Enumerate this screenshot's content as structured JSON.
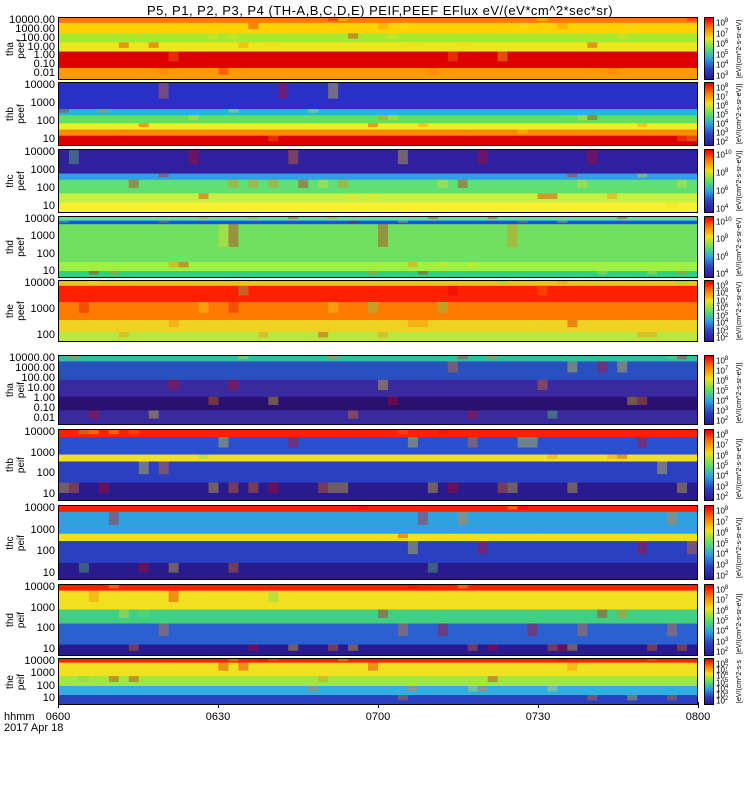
{
  "chart_data": {
    "type": "heatmap",
    "title": "P5, P1, P2, P3, P4 (TH-A,B,C,D,E) PEIF,PEEF EFlux eV/(eV*cm^2*sec*sr)",
    "x_ticks": [
      "0600",
      "0630",
      "0700",
      "0730",
      "0800"
    ],
    "xlabel_line1": "hhmm",
    "xlabel_line2": "2017 Apr 18",
    "colorbar_unit": "[eV/(cm^2-s-sr-eV)]",
    "panels": [
      {
        "label": "tha\npeef",
        "probe": "tha",
        "product": "peef",
        "y_ticks": [
          "10000.00",
          "1000.00",
          "100.00",
          "10.00",
          "1.00",
          "0.10",
          "0.01"
        ],
        "cbar_ticks": [
          "10^8",
          "10^7",
          "10^6",
          "10^5",
          "10^4",
          "10^3"
        ],
        "bands": [
          {
            "from": 0.0,
            "to": 0.08,
            "c": "#ff7a00"
          },
          {
            "from": 0.08,
            "to": 0.25,
            "c": "#ffd200"
          },
          {
            "from": 0.25,
            "to": 0.4,
            "c": "#a8e830"
          },
          {
            "from": 0.4,
            "to": 0.55,
            "c": "#e8e81a"
          },
          {
            "from": 0.55,
            "to": 0.82,
            "c": "#dd0000"
          },
          {
            "from": 0.82,
            "to": 1.0,
            "c": "#ff9a00"
          }
        ]
      },
      {
        "label": "thb\npeef",
        "probe": "thb",
        "product": "peef",
        "y_ticks": [
          "10000",
          "1000",
          "100",
          "10"
        ],
        "cbar_ticks": [
          "10^8",
          "10^7",
          "10^6",
          "10^5",
          "10^4",
          "10^3",
          "10^2"
        ],
        "bands": [
          {
            "from": 0.0,
            "to": 0.42,
            "c": "#2830c8"
          },
          {
            "from": 0.42,
            "to": 0.52,
            "c": "#20b8e0"
          },
          {
            "from": 0.52,
            "to": 0.65,
            "c": "#60e060"
          },
          {
            "from": 0.65,
            "to": 0.75,
            "c": "#f0f020"
          },
          {
            "from": 0.75,
            "to": 0.85,
            "c": "#ff8a00"
          },
          {
            "from": 0.85,
            "to": 1.0,
            "c": "#dd0000"
          }
        ]
      },
      {
        "label": "thc\npeef",
        "probe": "thc",
        "product": "peef",
        "y_ticks": [
          "10000",
          "1000",
          "100",
          "10"
        ],
        "cbar_ticks": [
          "10^10",
          "10^8",
          "10^6",
          "10^4"
        ],
        "bands": [
          {
            "from": 0.0,
            "to": 0.38,
            "c": "#3020a0"
          },
          {
            "from": 0.38,
            "to": 0.48,
            "c": "#30a0e0"
          },
          {
            "from": 0.48,
            "to": 0.7,
            "c": "#60e070"
          },
          {
            "from": 0.7,
            "to": 0.85,
            "c": "#c8f040"
          },
          {
            "from": 0.85,
            "to": 1.0,
            "c": "#f8f030"
          }
        ]
      },
      {
        "label": "thd\npeef",
        "probe": "thd",
        "product": "peef",
        "y_ticks": [
          "10000",
          "1000",
          "100",
          "10"
        ],
        "cbar_ticks": [
          "10^10",
          "10^8",
          "10^6",
          "10^4"
        ],
        "bands": [
          {
            "from": 0.0,
            "to": 0.06,
            "c": "#60e0a0"
          },
          {
            "from": 0.06,
            "to": 0.12,
            "c": "#2050e0"
          },
          {
            "from": 0.12,
            "to": 0.75,
            "c": "#70e060"
          },
          {
            "from": 0.75,
            "to": 0.9,
            "c": "#a0f040"
          },
          {
            "from": 0.9,
            "to": 1.0,
            "c": "#30d080"
          }
        ]
      },
      {
        "label": "the\npeef",
        "probe": "the",
        "product": "peef",
        "y_ticks": [
          "10000",
          "1000",
          "100"
        ],
        "cbar_ticks": [
          "10^9",
          "10^8",
          "10^7",
          "10^6",
          "10^5",
          "10^4",
          "10^3",
          "10^2"
        ],
        "bands": [
          {
            "from": 0.0,
            "to": 0.08,
            "c": "#f0c020"
          },
          {
            "from": 0.08,
            "to": 0.35,
            "c": "#ff2000"
          },
          {
            "from": 0.35,
            "to": 0.65,
            "c": "#ff7a00"
          },
          {
            "from": 0.65,
            "to": 0.85,
            "c": "#f0d020"
          },
          {
            "from": 0.85,
            "to": 1.0,
            "c": "#b8e840"
          }
        ]
      },
      {
        "label": "tha\npeif",
        "probe": "tha",
        "product": "peif",
        "y_ticks": [
          "10000.00",
          "1000.00",
          "100.00",
          "10.00",
          "1.00",
          "0.10",
          "0.01"
        ],
        "cbar_ticks": [
          "10^8",
          "10^7",
          "10^6",
          "10^5",
          "10^4",
          "10^3",
          "10^2"
        ],
        "bands": [
          {
            "from": 0.0,
            "to": 0.08,
            "c": "#30c0a0"
          },
          {
            "from": 0.08,
            "to": 0.35,
            "c": "#2850c0"
          },
          {
            "from": 0.35,
            "to": 0.6,
            "c": "#3a2aa0"
          },
          {
            "from": 0.6,
            "to": 0.8,
            "c": "#2a1070"
          },
          {
            "from": 0.8,
            "to": 1.0,
            "c": "#3a2aa0"
          }
        ]
      },
      {
        "label": "thb\npeif",
        "probe": "thb",
        "product": "peif",
        "y_ticks": [
          "10000",
          "1000",
          "100",
          "10"
        ],
        "cbar_ticks": [
          "10^8",
          "10^7",
          "10^6",
          "10^5",
          "10^4",
          "10^3",
          "10^2"
        ],
        "bands": [
          {
            "from": 0.0,
            "to": 0.1,
            "c": "#ff2000"
          },
          {
            "from": 0.1,
            "to": 0.35,
            "c": "#2a50d0"
          },
          {
            "from": 0.35,
            "to": 0.45,
            "c": "#f0e020"
          },
          {
            "from": 0.45,
            "to": 0.75,
            "c": "#2a40c0"
          },
          {
            "from": 0.75,
            "to": 1.0,
            "c": "#2a1a90"
          }
        ]
      },
      {
        "label": "thc\npeif",
        "probe": "thc",
        "product": "peif",
        "y_ticks": [
          "10000",
          "1000",
          "100",
          "10"
        ],
        "cbar_ticks": [
          "10^8",
          "10^7",
          "10^6",
          "10^5",
          "10^4",
          "10^3",
          "10^2"
        ],
        "bands": [
          {
            "from": 0.0,
            "to": 0.08,
            "c": "#ff2000"
          },
          {
            "from": 0.08,
            "to": 0.38,
            "c": "#30a0e0"
          },
          {
            "from": 0.38,
            "to": 0.48,
            "c": "#f0e020"
          },
          {
            "from": 0.48,
            "to": 0.78,
            "c": "#2a40c0"
          },
          {
            "from": 0.78,
            "to": 1.0,
            "c": "#2a1a90"
          }
        ]
      },
      {
        "label": "thd\npeif",
        "probe": "thd",
        "product": "peif",
        "y_ticks": [
          "10000",
          "1000",
          "100",
          "10"
        ],
        "cbar_ticks": [
          "10^8",
          "10^7",
          "10^6",
          "10^5",
          "10^4",
          "10^3",
          "10^2"
        ],
        "bands": [
          {
            "from": 0.0,
            "to": 0.08,
            "c": "#ff2000"
          },
          {
            "from": 0.08,
            "to": 0.35,
            "c": "#f0e020"
          },
          {
            "from": 0.35,
            "to": 0.55,
            "c": "#40d080"
          },
          {
            "from": 0.55,
            "to": 0.85,
            "c": "#2a60d0"
          },
          {
            "from": 0.85,
            "to": 1.0,
            "c": "#2a1a90"
          }
        ]
      },
      {
        "label": "the\npeif",
        "probe": "the",
        "product": "peif",
        "y_ticks": [
          "10000",
          "1000",
          "100",
          "10"
        ],
        "cbar_ticks": [
          "10^8",
          "10^7",
          "10^6",
          "10^5",
          "10^4",
          "10^3",
          "10^2"
        ],
        "bands": [
          {
            "from": 0.0,
            "to": 0.08,
            "c": "#ff2000"
          },
          {
            "from": 0.08,
            "to": 0.38,
            "c": "#f0e020"
          },
          {
            "from": 0.38,
            "to": 0.6,
            "c": "#a0e840"
          },
          {
            "from": 0.6,
            "to": 0.8,
            "c": "#30b0e0"
          },
          {
            "from": 0.8,
            "to": 1.0,
            "c": "#2a40c0"
          }
        ]
      }
    ]
  }
}
